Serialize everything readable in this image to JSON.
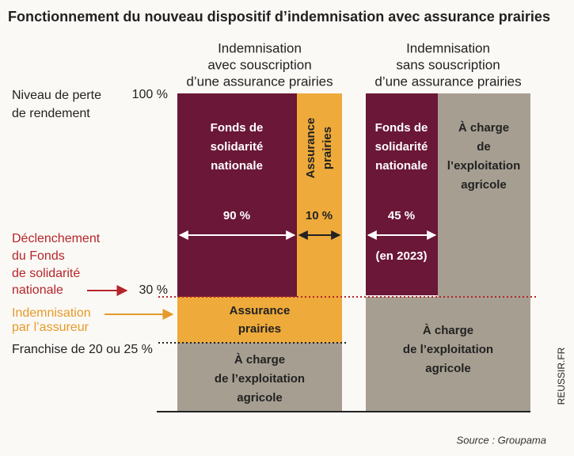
{
  "title": "Fonctionnement du nouveau dispositif d’indemnisation avec assurance prairies",
  "left_labels": {
    "loss_level": [
      "Niveau de perte",
      "de rendement"
    ],
    "top_pct": "100 %",
    "trigger": [
      "Déclenchement",
      "du Fonds",
      "de solidarité",
      "nationale"
    ],
    "trigger_pct": "30 %",
    "insurer": [
      "Indemnisation",
      "par l’assureur"
    ],
    "deductible": "Franchise de 20 ou 25 %"
  },
  "columns": [
    {
      "header": [
        "Indemnisation",
        "avec souscription",
        "d’une assurance prairies"
      ],
      "fund": [
        "Fonds de",
        "solidarité",
        "nationale"
      ],
      "fund_pct": "90 %",
      "insurance_top": [
        "Assurance",
        "prairies"
      ],
      "insurance_pct": "10 %",
      "insurer_band": [
        "Assurance",
        "prairies"
      ],
      "farm_band": [
        "À charge",
        "de l’exploitation",
        "agricole"
      ]
    },
    {
      "header": [
        "Indemnisation",
        "sans souscription",
        "d’une assurance prairies"
      ],
      "fund": [
        "Fonds de",
        "solidarité",
        "nationale"
      ],
      "fund_pct": "45 %",
      "fund_note": "(en 2023)",
      "farm_top": [
        "À charge",
        "de",
        "l’exploitation",
        "agricole"
      ],
      "farm_band": [
        "À charge",
        "de l’exploitation",
        "agricole"
      ]
    }
  ],
  "watermark": "REUSSIR.FR",
  "source": "Source : Groupama"
}
